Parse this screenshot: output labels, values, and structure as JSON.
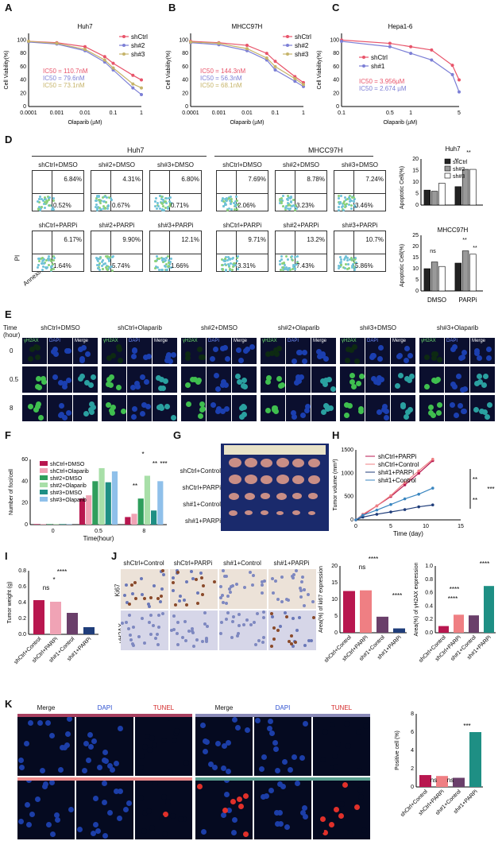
{
  "panels": {
    "A": "A",
    "B": "B",
    "C": "C",
    "D": "D",
    "E": "E",
    "F": "F",
    "G": "G",
    "H": "H",
    "I": "I",
    "J": "J",
    "K": "K"
  },
  "panelA": {
    "title": "Huh7",
    "ylabel": "Cell Viability(%)",
    "xlabel": "Olaparib (µM)",
    "xticks": [
      "0.0001",
      "0.001",
      "0.01",
      "0.1",
      "1"
    ],
    "yticks": [
      "0",
      "20",
      "40",
      "60",
      "80",
      "100"
    ],
    "legend": [
      "shCtrl",
      "sh#2",
      "sh#3"
    ],
    "ic50": [
      "IC50 = 110.7nM",
      "IC50 = 79.6nM",
      "IC50 = 73.1nM"
    ]
  },
  "panelB": {
    "title": "MHCC97H",
    "ylabel": "Cell Viability(%)",
    "xlabel": "Olaparib (µM)",
    "xticks": [
      "0.0001",
      "0.001",
      "0.01",
      "0.1",
      "1"
    ],
    "yticks": [
      "0",
      "20",
      "40",
      "60",
      "80",
      "100"
    ],
    "legend": [
      "shCtrl",
      "sh#2",
      "sh#3"
    ],
    "ic50": [
      "IC50 = 144.3nM",
      "IC50 = 56.3nM",
      "IC50 = 68.1nM"
    ]
  },
  "panelC": {
    "title": "Hepa1-6",
    "ylabel": "Cell Viability(%)",
    "xlabel": "Olaparib (µM)",
    "xticks": [
      "0.1",
      "0.5",
      "1",
      "5"
    ],
    "yticks": [
      "0",
      "20",
      "40",
      "60",
      "80",
      "100"
    ],
    "legend": [
      "shCtrl",
      "sh#1"
    ],
    "ic50": [
      "IC50 = 3.956µM",
      "IC50 = 2.674 µM"
    ]
  },
  "panelD": {
    "group1": "Huh7",
    "group2": "MHCC97H",
    "yaxis": "PI",
    "xaxis": "Annexin V",
    "plots": [
      {
        "title": "shCtrl+DMSO",
        "ur": "6.84%",
        "lr": "0.52%"
      },
      {
        "title": "sh#2+DMSO",
        "ur": "4.31%",
        "lr": "0.67%"
      },
      {
        "title": "sh#3+DMSO",
        "ur": "6.80%",
        "lr": "0.71%"
      },
      {
        "title": "shCtrl+DMSO",
        "ur": "7.69%",
        "lr": "2.06%"
      },
      {
        "title": "sh#2+DMSO",
        "ur": "8.78%",
        "lr": "3.23%"
      },
      {
        "title": "sh#3+DMSO",
        "ur": "7.24%",
        "lr": "3.46%"
      },
      {
        "title": "shCtrl+PARPi",
        "ur": "6.17%",
        "lr": "1.64%"
      },
      {
        "title": "sh#2+PARPi",
        "ur": "9.90%",
        "lr": "5.74%"
      },
      {
        "title": "sh#3+PARPi",
        "ur": "12.1%",
        "lr": "1.66%"
      },
      {
        "title": "shCtrl+PARPi",
        "ur": "9.71%",
        "lr": "3.31%"
      },
      {
        "title": "sh#2+PARPi",
        "ur": "13.2%",
        "lr": "7.43%"
      },
      {
        "title": "sh#3+PARPi",
        "ur": "10.7%",
        "lr": "5.86%"
      }
    ],
    "bar1_title": "Huh7",
    "bar2_title": "MHCC97H",
    "bar_ylabel": "Apoptotic Cell(%)",
    "bar_legend": [
      "shCtrl",
      "sh#2",
      "sh#3"
    ],
    "bar_x": [
      "DMSO",
      "PARPi"
    ],
    "sig": [
      "**",
      "**",
      "ns",
      "**",
      "**"
    ],
    "yt1": [
      "0",
      "5",
      "10",
      "15",
      "20"
    ],
    "yt2": [
      "0",
      "5",
      "10",
      "15",
      "20",
      "25"
    ]
  },
  "panelE": {
    "time_label": "Time\n(hour)",
    "times": [
      "0",
      "0.5",
      "8"
    ],
    "groups": [
      "shCtrl+DMSO",
      "shCtrl+Olaparib",
      "sh#2+DMSO",
      "sh#2+Olaparib",
      "sh#3+DMSO",
      "sh#3+Olaparib"
    ],
    "channels": [
      "γH2AX",
      "DAPI",
      "Merge"
    ]
  },
  "panelF": {
    "ylabel": "Number of foci/cell",
    "xlabel": "Time(hour)",
    "xticks": [
      "0",
      "0.5",
      "8"
    ],
    "yticks": [
      "0",
      "20",
      "40",
      "60"
    ],
    "legend": [
      "shCtrl+DMSO",
      "shCtrl+Olaparib",
      "sh#2+DMSO",
      "sh#2+Olaparib",
      "sh#3+DMSO",
      "sh#3+Olaparib"
    ],
    "sig": [
      "*",
      "**",
      "***",
      "**"
    ]
  },
  "panelG": {
    "rows": [
      "shCtrl+Control",
      "shCtrl+PARPi",
      "sh#1+Control",
      "sh#1+PARPi"
    ]
  },
  "panelH": {
    "ylabel": "Tumor volume (mm³)",
    "xlabel": "Time (day)",
    "xticks": [
      "0",
      "5",
      "10",
      "15"
    ],
    "yticks": [
      "0",
      "500",
      "1000",
      "1500"
    ],
    "legend": [
      "shCtrl+PARPi",
      "shCtrl+Control",
      "sh#1+PARPi",
      "sh#1+Control"
    ],
    "sig": [
      "**",
      "**",
      "***"
    ]
  },
  "panelI": {
    "ylabel": "Tumor weight (g)",
    "yticks": [
      "0.0",
      "0.2",
      "0.4",
      "0.6",
      "0.8"
    ],
    "groups": [
      "shCtrl+Control",
      "shCtrl+PARPi",
      "sh#1+Control",
      "sh#1+PARPi"
    ],
    "sig": [
      "ns",
      "*",
      "****"
    ]
  },
  "panelJ": {
    "cols": [
      "shCtrl+Control",
      "shCtrl+PARPi",
      "sh#1+Control",
      "sh#1+PARPi"
    ],
    "rows": [
      "Ki67",
      "γH2AX"
    ],
    "bar1_ylabel": "Area(%) of ki67 expression",
    "bar2_ylabel": "Area(%) of γH2AX expression",
    "yt1": [
      "0",
      "5",
      "10",
      "15",
      "20"
    ],
    "yt2": [
      "0.0",
      "0.2",
      "0.4",
      "0.6",
      "0.8",
      "1.0"
    ],
    "groups": [
      "shCtrl+Control",
      "shCtrl+PARPi",
      "sh#1+Control",
      "sh#1+PARPi"
    ],
    "sig": [
      "ns",
      "****",
      "****",
      "****",
      "****"
    ]
  },
  "panelK": {
    "headers": [
      "Merge",
      "DAPI",
      "TUNEL",
      "Merge",
      "DAPI",
      "TUNEL"
    ],
    "ylabel": "Positive cell (%)",
    "yticks": [
      "0",
      "2",
      "4",
      "6",
      "8"
    ],
    "groups": [
      "shCtrl+Control",
      "shCtrl+PARPi",
      "sh#1+Control",
      "sh#1+PARPi"
    ],
    "sig": [
      "ns",
      "ns",
      "***"
    ]
  },
  "chart_data": [
    {
      "type": "line",
      "title": "Huh7",
      "xlabel": "Olaparib (µM)",
      "ylabel": "Cell Viability(%)",
      "x": [
        0.0001,
        0.001,
        0.01,
        0.05,
        0.1,
        0.5,
        1
      ],
      "series": [
        {
          "name": "shCtrl",
          "values": [
            98,
            96,
            90,
            75,
            65,
            47,
            40
          ]
        },
        {
          "name": "sh#2",
          "values": [
            97,
            94,
            84,
            67,
            55,
            28,
            18
          ]
        },
        {
          "name": "sh#3",
          "values": [
            98,
            95,
            86,
            70,
            58,
            34,
            28
          ]
        }
      ],
      "ylim": [
        0,
        110
      ]
    },
    {
      "type": "line",
      "title": "MHCC97H",
      "xlabel": "Olaparib (µM)",
      "ylabel": "Cell Viability(%)",
      "x": [
        0.0001,
        0.001,
        0.01,
        0.05,
        0.1,
        0.5,
        1
      ],
      "series": [
        {
          "name": "shCtrl",
          "values": [
            98,
            96,
            92,
            80,
            68,
            45,
            36
          ]
        },
        {
          "name": "sh#2",
          "values": [
            96,
            93,
            84,
            70,
            55,
            38,
            30
          ]
        },
        {
          "name": "sh#3",
          "values": [
            97,
            95,
            87,
            73,
            60,
            42,
            33
          ]
        }
      ],
      "ylim": [
        0,
        110
      ]
    },
    {
      "type": "line",
      "title": "Hepa1-6",
      "xlabel": "Olaparib (µM)",
      "ylabel": "Cell Viability(%)",
      "x": [
        0.1,
        0.5,
        1,
        2,
        4,
        5
      ],
      "series": [
        {
          "name": "shCtrl",
          "values": [
            100,
            95,
            90,
            85,
            62,
            40
          ]
        },
        {
          "name": "sh#1",
          "values": [
            98,
            90,
            80,
            70,
            48,
            22
          ]
        }
      ],
      "ylim": [
        0,
        110
      ]
    },
    {
      "type": "bar",
      "title": "Huh7",
      "ylabel": "Apoptotic Cell(%)",
      "categories": [
        "DMSO",
        "PARPi"
      ],
      "series": [
        {
          "name": "shCtrl",
          "values": [
            6.5,
            8
          ]
        },
        {
          "name": "sh#2",
          "values": [
            6,
            15.5
          ]
        },
        {
          "name": "sh#3",
          "values": [
            9.5,
            15.5
          ]
        }
      ],
      "ylim": [
        0,
        20
      ]
    },
    {
      "type": "bar",
      "title": "MHCC97H",
      "ylabel": "Apoptotic Cell(%)",
      "categories": [
        "DMSO",
        "PARPi"
      ],
      "series": [
        {
          "name": "shCtrl",
          "values": [
            10,
            12.5
          ]
        },
        {
          "name": "sh#2",
          "values": [
            13,
            18
          ]
        },
        {
          "name": "sh#3",
          "values": [
            11,
            16.5
          ]
        }
      ],
      "ylim": [
        0,
        25
      ]
    },
    {
      "type": "bar",
      "ylabel": "Number of foci/cell",
      "xlabel": "Time(hour)",
      "categories": [
        "0",
        "0.5",
        "8"
      ],
      "series": [
        {
          "name": "shCtrl+DMSO",
          "values": [
            0.5,
            24,
            7
          ]
        },
        {
          "name": "shCtrl+Olaparib",
          "values": [
            0.5,
            27,
            10
          ]
        },
        {
          "name": "sh#2+DMSO",
          "values": [
            0.5,
            40,
            24
          ]
        },
        {
          "name": "sh#2+Olaparib",
          "values": [
            0.5,
            52,
            45
          ]
        },
        {
          "name": "sh#3+DMSO",
          "values": [
            0.5,
            39,
            13
          ]
        },
        {
          "name": "sh#3+Olaparib",
          "values": [
            0.5,
            49,
            40
          ]
        }
      ],
      "ylim": [
        0,
        60
      ]
    },
    {
      "type": "line",
      "ylabel": "Tumor volume (mm³)",
      "xlabel": "Time (day)",
      "x": [
        0,
        1,
        3,
        5,
        7,
        9,
        11
      ],
      "series": [
        {
          "name": "shCtrl+PARPi",
          "values": [
            0,
            100,
            300,
            500,
            750,
            1000,
            1270
          ]
        },
        {
          "name": "shCtrl+Control",
          "values": [
            0,
            120,
            300,
            520,
            800,
            1050,
            1300
          ]
        },
        {
          "name": "sh#1+PARPi",
          "values": [
            0,
            60,
            120,
            170,
            220,
            280,
            320
          ]
        },
        {
          "name": "sh#1+Control",
          "values": [
            0,
            100,
            210,
            330,
            450,
            550,
            680
          ]
        }
      ],
      "ylim": [
        0,
        1500
      ]
    },
    {
      "type": "bar",
      "ylabel": "Tumor weight (g)",
      "categories": [
        "shCtrl+Control",
        "shCtrl+PARPi",
        "sh#1+Control",
        "sh#1+PARPi"
      ],
      "values": [
        0.43,
        0.41,
        0.27,
        0.09
      ],
      "ylim": [
        0,
        0.8
      ]
    },
    {
      "type": "bar",
      "ylabel": "Area(%) of ki67 expression",
      "categories": [
        "shCtrl+Control",
        "shCtrl+PARPi",
        "sh#1+Control",
        "sh#1+PARPi"
      ],
      "values": [
        12.5,
        12.7,
        4.8,
        1.3
      ],
      "ylim": [
        0,
        20
      ]
    },
    {
      "type": "bar",
      "ylabel": "Area(%) of γH2AX expression",
      "categories": [
        "shCtrl+Control",
        "shCtrl+PARPi",
        "sh#1+Control",
        "sh#1+PARPi"
      ],
      "values": [
        0.1,
        0.27,
        0.26,
        0.7
      ],
      "ylim": [
        0,
        1.0
      ]
    },
    {
      "type": "bar",
      "ylabel": "Positive cell (%)",
      "categories": [
        "shCtrl+Control",
        "shCtrl+PARPi",
        "sh#1+Control",
        "sh#1+PARPi"
      ],
      "values": [
        1.3,
        1.2,
        1.0,
        6.0
      ],
      "ylim": [
        0,
        8
      ]
    }
  ],
  "colors": {
    "ctrl": "#e8546a",
    "sh2": "#7c7fd6",
    "sh3": "#c6b46a",
    "darkpink": "#b8174f",
    "lightpink": "#f0a3b5",
    "green": "#2f9e5c",
    "lightgreen": "#a8dfa8",
    "teal": "#1e8f84",
    "lightblue": "#8fc0ea",
    "navy": "#1f3d7a",
    "steel": "#3a86c0",
    "salmon": "#ef7f83"
  }
}
